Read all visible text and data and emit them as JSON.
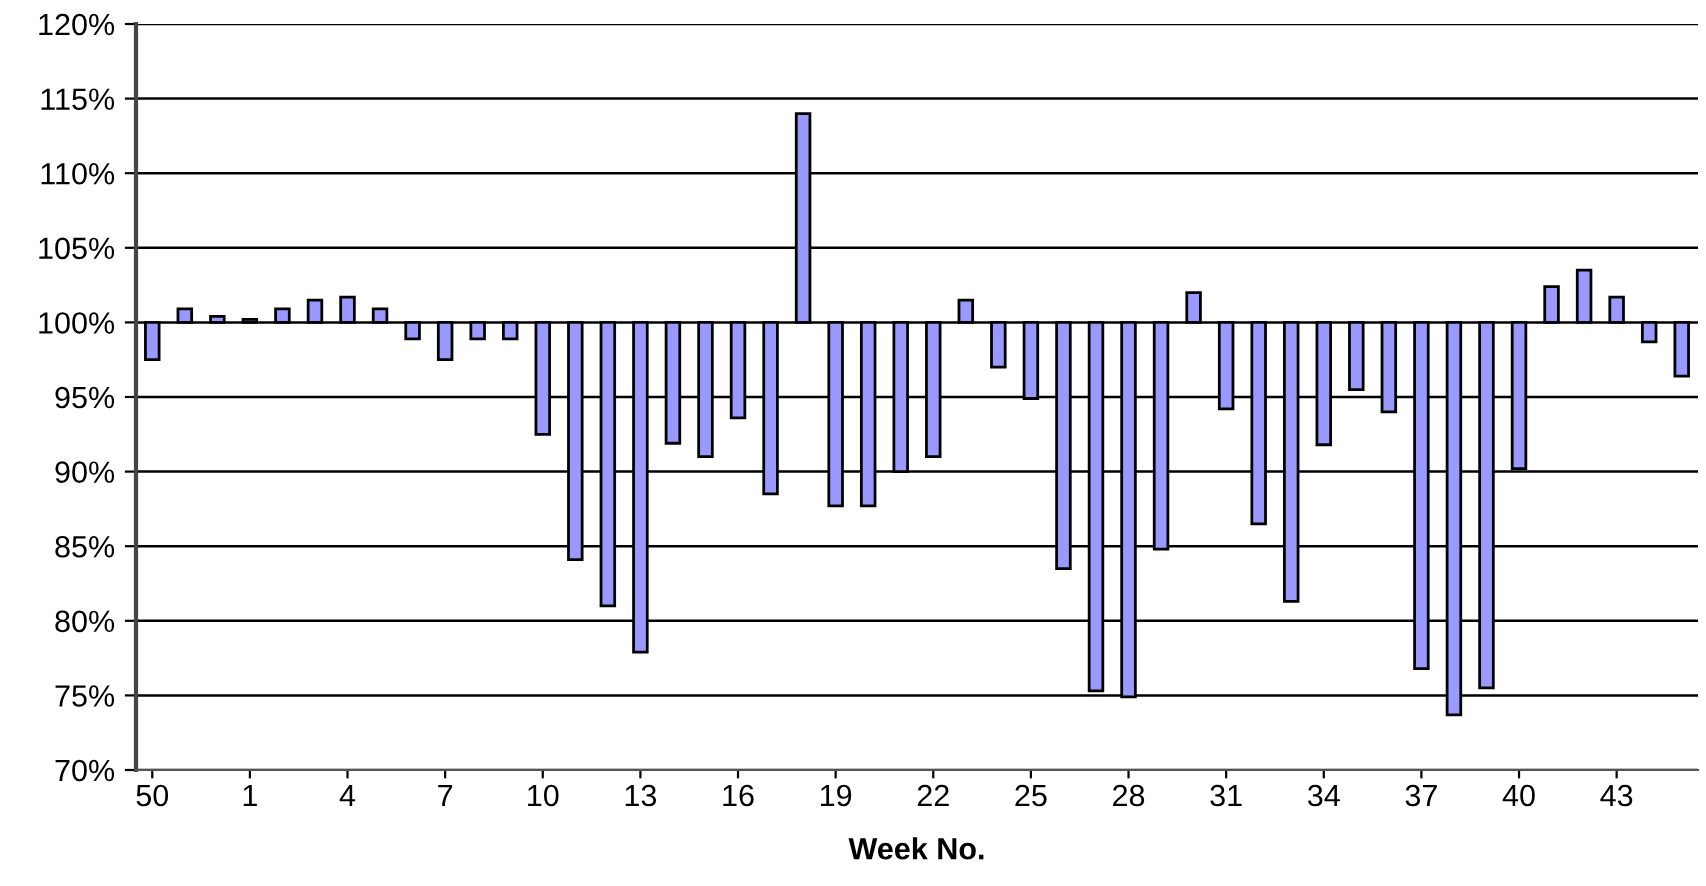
{
  "chart_data": {
    "type": "bar",
    "xlabel": "Week No.",
    "categories": [
      "50",
      null,
      null,
      "1",
      null,
      null,
      "4",
      null,
      null,
      "7",
      null,
      null,
      "10",
      null,
      null,
      "13",
      null,
      null,
      "16",
      null,
      null,
      "19",
      null,
      null,
      "22",
      null,
      null,
      "25",
      null,
      null,
      "28",
      null,
      null,
      "31",
      null,
      null,
      "34",
      null,
      null,
      "37",
      null,
      null,
      "40",
      null,
      null,
      "43",
      null,
      null
    ],
    "base": [
      100,
      100,
      100,
      100,
      100,
      100,
      100,
      100,
      100,
      100,
      100,
      100,
      100,
      100,
      100,
      100,
      100,
      100,
      100,
      100,
      100,
      100,
      100,
      100,
      100,
      100,
      100,
      100,
      100,
      100,
      100,
      100,
      100,
      100,
      100,
      100,
      100,
      100,
      100,
      100,
      100,
      100,
      100,
      100,
      100,
      100,
      100,
      100
    ],
    "values": [
      -2.5,
      0.9,
      0.4,
      0.2,
      0.9,
      1.5,
      1.7,
      0.9,
      -1.1,
      -2.5,
      -1.1,
      -1.1,
      -7.5,
      -15.9,
      -19.0,
      -22.1,
      -8.1,
      -9.0,
      -6.4,
      -11.5,
      14.0,
      -12.3,
      -12.3,
      -10.0,
      -9.0,
      1.5,
      -3.0,
      -5.1,
      -16.5,
      -24.7,
      -25.1,
      -15.2,
      2.0,
      -5.8,
      -13.5,
      -18.7,
      -8.2,
      -4.5,
      -6.0,
      -23.2,
      -26.3,
      -24.5,
      -9.8,
      2.4,
      3.5,
      1.7,
      -1.3,
      -3.6
    ],
    "color": "#9999ff",
    "ylim": [
      70,
      120
    ],
    "yticks": [
      {
        "value": 70,
        "label": "70%"
      },
      {
        "value": 75,
        "label": "75%"
      },
      {
        "value": 80,
        "label": "80%"
      },
      {
        "value": 85,
        "label": "85%"
      },
      {
        "value": 90,
        "label": "90%"
      },
      {
        "value": 95,
        "label": "95%"
      },
      {
        "value": 100,
        "label": "100%"
      },
      {
        "value": 105,
        "label": "105%"
      },
      {
        "value": 110,
        "label": "110%"
      },
      {
        "value": 115,
        "label": "115%"
      },
      {
        "value": 120,
        "label": "120%"
      }
    ],
    "grid": "y"
  }
}
